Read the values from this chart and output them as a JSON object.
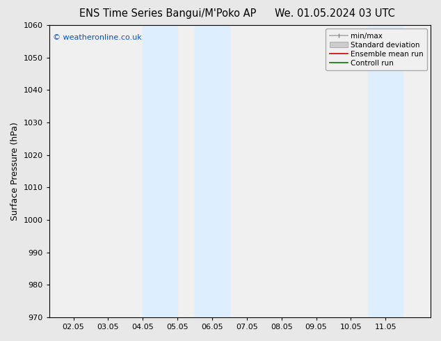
{
  "title_left": "ENS Time Series Bangui/M'Poko AP",
  "title_right": "We. 01.05.2024 03 UTC",
  "ylabel": "Surface Pressure (hPa)",
  "ylim": [
    970,
    1060
  ],
  "yticks": [
    970,
    980,
    990,
    1000,
    1010,
    1020,
    1030,
    1040,
    1050,
    1060
  ],
  "xtick_labels": [
    "02.05",
    "03.05",
    "04.05",
    "05.05",
    "06.05",
    "07.05",
    "08.05",
    "09.05",
    "10.05",
    "11.05"
  ],
  "xtick_positions": [
    1,
    2,
    3,
    4,
    5,
    6,
    7,
    8,
    9,
    10
  ],
  "xlim": [
    0.3,
    11.3
  ],
  "shade_bands": [
    {
      "xmin": 3.0,
      "xmax": 4.0
    },
    {
      "xmin": 4.5,
      "xmax": 5.5
    },
    {
      "xmin": 9.5,
      "xmax": 10.5
    }
  ],
  "shade_color": "#ddeeff",
  "watermark": "© weatheronline.co.uk",
  "watermark_color": "#0055cc",
  "legend_items": [
    {
      "label": "min/max"
    },
    {
      "label": "Standard deviation"
    },
    {
      "label": "Ensemble mean run"
    },
    {
      "label": "Controll run"
    }
  ],
  "plot_bg_color": "#f0f0f0",
  "fig_bg_color": "#e8e8e8",
  "title_fontsize": 10.5,
  "tick_fontsize": 8,
  "ylabel_fontsize": 9
}
